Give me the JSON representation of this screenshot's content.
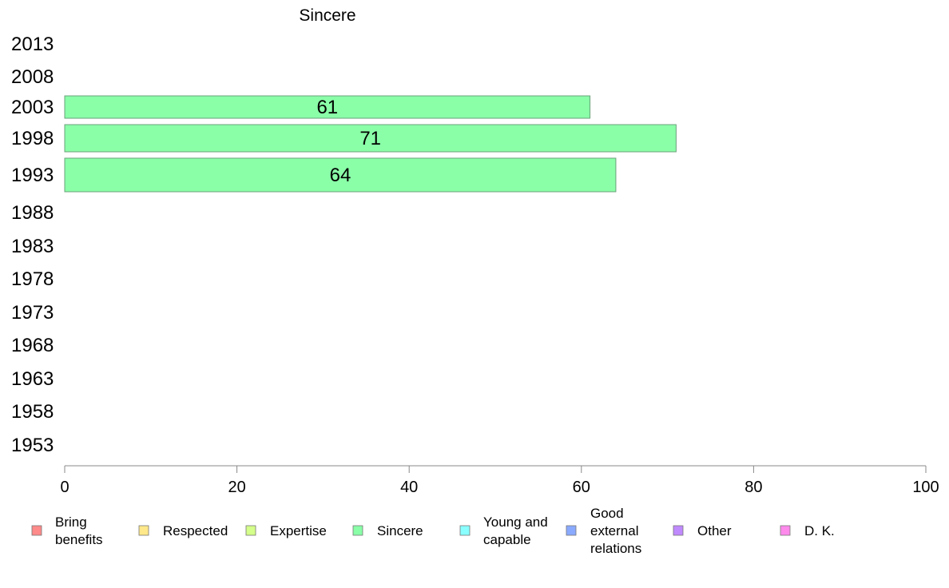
{
  "chart_data": {
    "type": "bar",
    "orientation": "horizontal",
    "title": "Sincere",
    "categories": [
      "2013",
      "2008",
      "2003",
      "1998",
      "1993",
      "1988",
      "1983",
      "1978",
      "1973",
      "1968",
      "1963",
      "1958",
      "1953"
    ],
    "series": [
      {
        "name": "Sincere",
        "values": [
          null,
          null,
          61,
          71,
          64,
          null,
          null,
          null,
          null,
          null,
          null,
          null,
          null
        ],
        "color": "#8affa8"
      }
    ],
    "xlim": [
      0,
      100
    ],
    "xticks": [
      "0",
      "20",
      "40",
      "60",
      "80",
      "100"
    ],
    "grid": false,
    "legend_position": "bottom",
    "legend": [
      {
        "label": "Bring benefits",
        "color": "#ff8a8a"
      },
      {
        "label": "Respected",
        "color": "#ffe88a"
      },
      {
        "label": "Expertise",
        "color": "#d4ff8a"
      },
      {
        "label": "Sincere",
        "color": "#8affa8"
      },
      {
        "label": "Young and capable",
        "color": "#8affff"
      },
      {
        "label": "Good external relations",
        "color": "#8aaaff"
      },
      {
        "label": "Other",
        "color": "#c08aff"
      },
      {
        "label": "D. K.",
        "color": "#ff8aec"
      }
    ]
  }
}
